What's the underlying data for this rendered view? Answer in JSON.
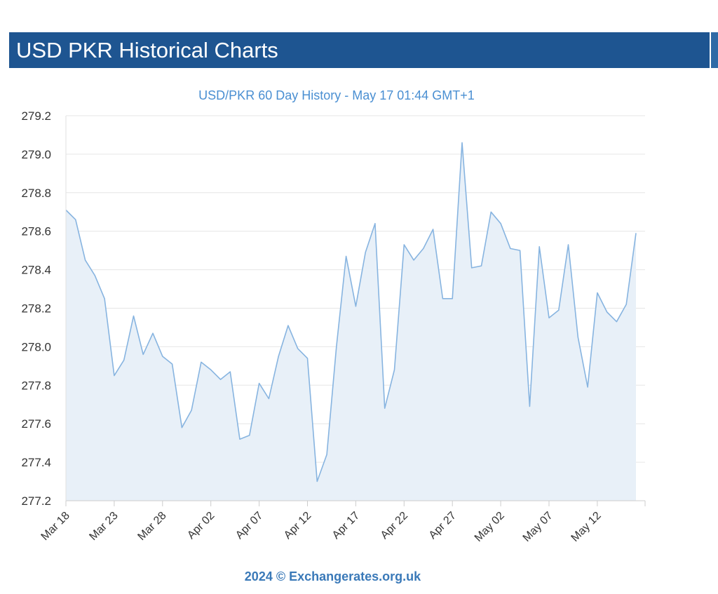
{
  "header": {
    "title": "USD PKR Historical Charts"
  },
  "colors": {
    "header_bg": "#1e5591",
    "line": "#87b4e0",
    "area": "#e8f0f8",
    "grid": "#e6e6e6",
    "title": "#4a8fd2",
    "credit": "#3a79b8"
  },
  "chart_data": {
    "type": "area",
    "title": "USD/PKR 60 Day History - May 17 01:44 GMT+1",
    "xlabel": "",
    "ylabel": "",
    "ylim": [
      277.2,
      279.2
    ],
    "yticks": [
      "279.2",
      "279.0",
      "278.8",
      "278.6",
      "278.4",
      "278.2",
      "278.0",
      "277.8",
      "277.6",
      "277.4",
      "277.2"
    ],
    "xticks": [
      {
        "label": "Mar 18",
        "index": 0
      },
      {
        "label": "Mar 23",
        "index": 5
      },
      {
        "label": "Mar 28",
        "index": 10
      },
      {
        "label": "Apr 02",
        "index": 15
      },
      {
        "label": "Apr 07",
        "index": 20
      },
      {
        "label": "Apr 12",
        "index": 25
      },
      {
        "label": "Apr 17",
        "index": 30
      },
      {
        "label": "Apr 22",
        "index": 35
      },
      {
        "label": "Apr 27",
        "index": 40
      },
      {
        "label": "May 02",
        "index": 45
      },
      {
        "label": "May 07",
        "index": 50
      },
      {
        "label": "May 12",
        "index": 55
      }
    ],
    "x_count": 60,
    "series": [
      {
        "name": "USD/PKR",
        "values": [
          278.71,
          278.66,
          278.45,
          278.37,
          278.25,
          277.85,
          277.93,
          278.16,
          277.96,
          278.07,
          277.95,
          277.91,
          277.58,
          277.67,
          277.92,
          277.88,
          277.83,
          277.87,
          277.52,
          277.54,
          277.81,
          277.73,
          277.95,
          278.11,
          277.99,
          277.94,
          277.3,
          277.44,
          278.0,
          278.47,
          278.21,
          278.49,
          278.64,
          277.68,
          277.88,
          278.53,
          278.45,
          278.51,
          278.61,
          278.25,
          278.25,
          279.06,
          278.41,
          278.42,
          278.7,
          278.64,
          278.51,
          278.5,
          277.69,
          278.52,
          278.15,
          278.19,
          278.53,
          278.05,
          277.79,
          278.28,
          278.18,
          278.13,
          278.22,
          278.59
        ]
      }
    ]
  },
  "footer": {
    "credit": "2024 © Exchangerates.org.uk"
  }
}
